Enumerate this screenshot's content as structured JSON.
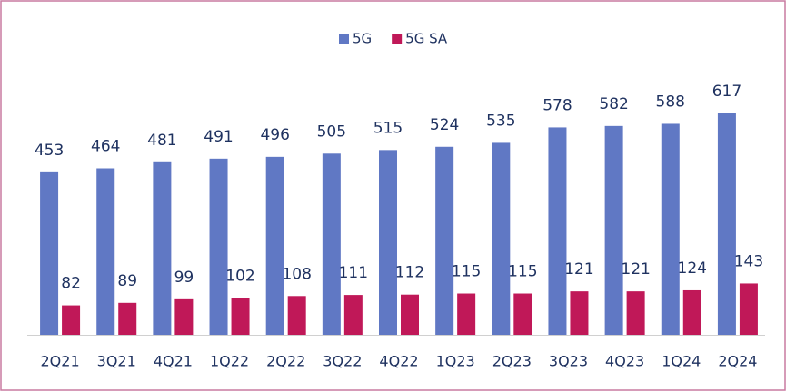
{
  "chart_data": {
    "type": "bar",
    "categories": [
      "2Q21",
      "3Q21",
      "4Q21",
      "1Q22",
      "2Q22",
      "3Q22",
      "4Q22",
      "1Q23",
      "2Q23",
      "3Q23",
      "4Q23",
      "1Q24",
      "2Q24"
    ],
    "series": [
      {
        "name": "5G",
        "color": "#6078c4",
        "values": [
          453,
          464,
          481,
          491,
          496,
          505,
          515,
          524,
          535,
          578,
          582,
          588,
          617
        ]
      },
      {
        "name": "5G SA",
        "color": "#c01858",
        "values": [
          82,
          89,
          99,
          102,
          108,
          111,
          112,
          115,
          115,
          121,
          121,
          124,
          143
        ]
      }
    ],
    "legend": "top"
  }
}
